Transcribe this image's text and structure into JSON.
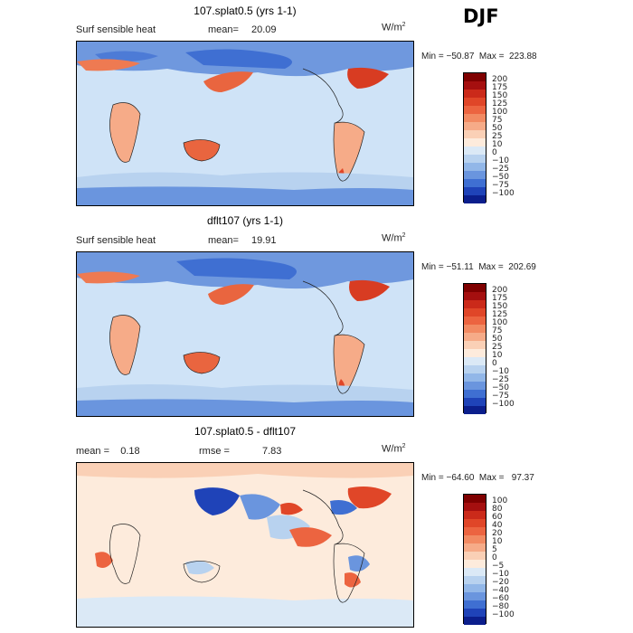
{
  "season": "DJF",
  "panels": [
    {
      "title": "107.splat0.5 (yrs 1-1)",
      "left_label": "Surf sensible heat",
      "stat_label": "mean=",
      "stat_value": "20.09",
      "units": "W/m",
      "units_exp": "2",
      "min_max": "Min = −50.87  Max =  223.88",
      "colorbar": {
        "labels": [
          "200",
          "175",
          "150",
          "125",
          "100",
          "75",
          "50",
          "25",
          "10",
          "0",
          "−10",
          "−25",
          "−50",
          "−75",
          "−100"
        ],
        "colors": [
          "#7f0000",
          "#a50f0f",
          "#cb2a1a",
          "#e04628",
          "#ec6440",
          "#f28a62",
          "#f6ab88",
          "#fad0b6",
          "#fdebdc",
          "#dbe9f6",
          "#b8d2ef",
          "#92b7e8",
          "#6a95de",
          "#3f6fd2",
          "#1f43b8",
          "#0b1e8c"
        ]
      }
    },
    {
      "title": "dflt107 (yrs 1-1)",
      "left_label": "Surf sensible heat",
      "stat_label": "mean=",
      "stat_value": "19.91",
      "units": "W/m",
      "units_exp": "2",
      "min_max": "Min = −51.11  Max =  202.69",
      "colorbar": {
        "labels": [
          "200",
          "175",
          "150",
          "125",
          "100",
          "75",
          "50",
          "25",
          "10",
          "0",
          "−10",
          "−25",
          "−50",
          "−75",
          "−100"
        ],
        "colors": [
          "#7f0000",
          "#a50f0f",
          "#cb2a1a",
          "#e04628",
          "#ec6440",
          "#f28a62",
          "#f6ab88",
          "#fad0b6",
          "#fdebdc",
          "#dbe9f6",
          "#b8d2ef",
          "#92b7e8",
          "#6a95de",
          "#3f6fd2",
          "#1f43b8",
          "#0b1e8c"
        ]
      }
    },
    {
      "title": "107.splat0.5 - dflt107",
      "left_label": "mean =    0.18",
      "stat_label": "rmse =",
      "stat_value": "7.83",
      "units": "W/m",
      "units_exp": "2",
      "min_max": "Min = −64.60  Max =   97.37",
      "colorbar": {
        "labels": [
          "100",
          "80",
          "60",
          "40",
          "20",
          "10",
          "5",
          "0",
          "−5",
          "−10",
          "−20",
          "−40",
          "−60",
          "−80",
          "−100"
        ],
        "colors": [
          "#7f0000",
          "#a50f0f",
          "#cb2a1a",
          "#e04628",
          "#ec6440",
          "#f28a62",
          "#f6ab88",
          "#fad0b6",
          "#fdebdc",
          "#dbe9f6",
          "#b8d2ef",
          "#92b7e8",
          "#6a95de",
          "#3f6fd2",
          "#1f43b8",
          "#0b1e8c"
        ]
      }
    }
  ]
}
